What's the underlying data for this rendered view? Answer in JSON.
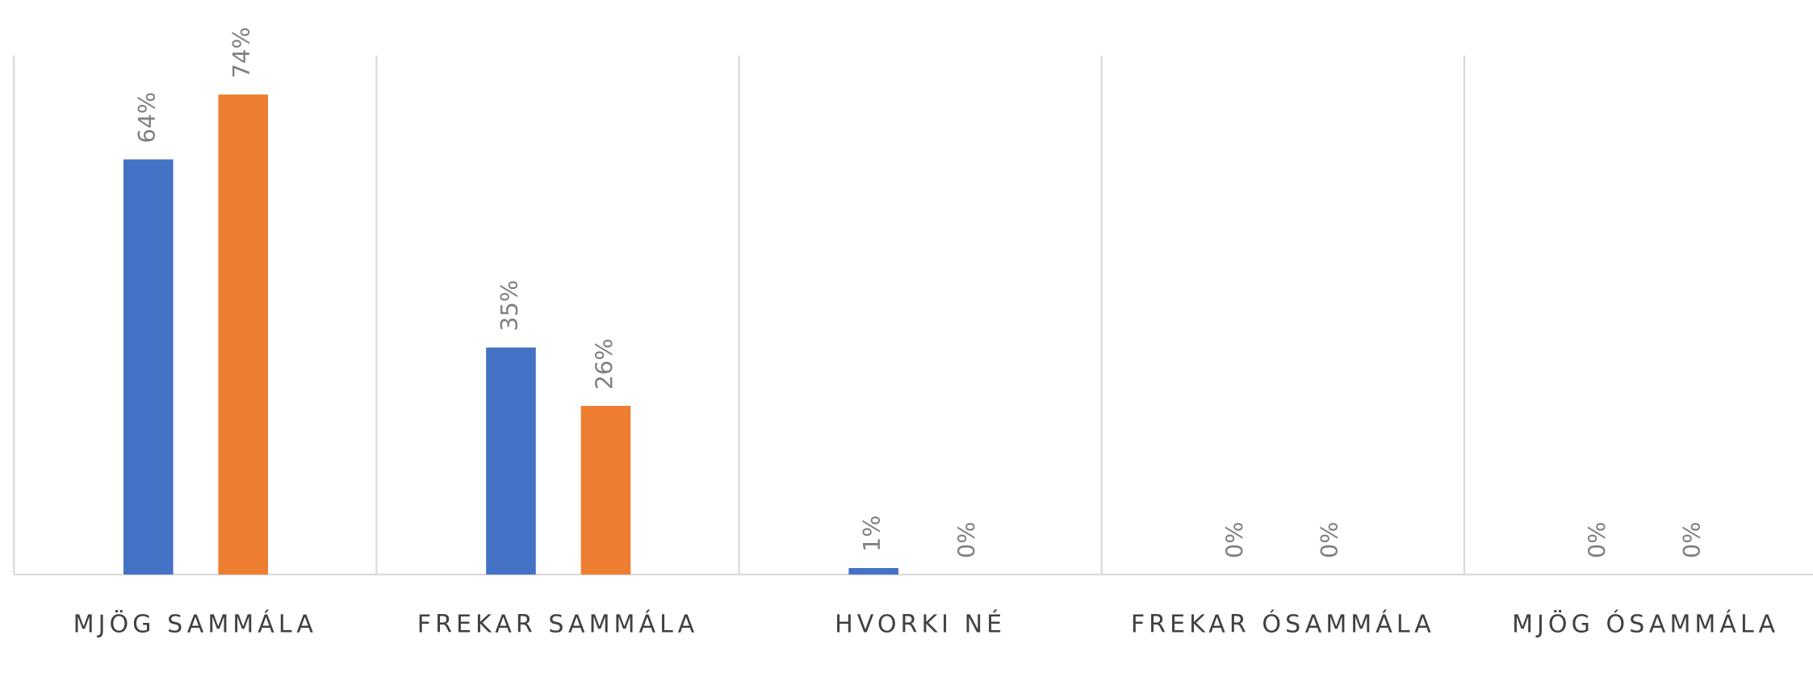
{
  "chart_data": {
    "type": "bar",
    "categories": [
      "MJÖG SAMMÁLA",
      "FREKAR SAMMÁLA",
      "HVORKI NÉ",
      "FREKAR ÓSAMMÁLA",
      "MJÖG ÓSAMMÁLA"
    ],
    "series": [
      {
        "color": "#4472c4",
        "values": [
          64,
          35,
          1,
          0,
          0
        ],
        "value_labels": [
          "64%",
          "35%",
          "1%",
          "0%",
          "0%"
        ]
      },
      {
        "color": "#ed7d31",
        "values": [
          74,
          26,
          0,
          0,
          0
        ],
        "value_labels": [
          "74%",
          "26%",
          "0%",
          "0%",
          "0%"
        ]
      }
    ],
    "ylim": [
      0,
      80
    ]
  }
}
